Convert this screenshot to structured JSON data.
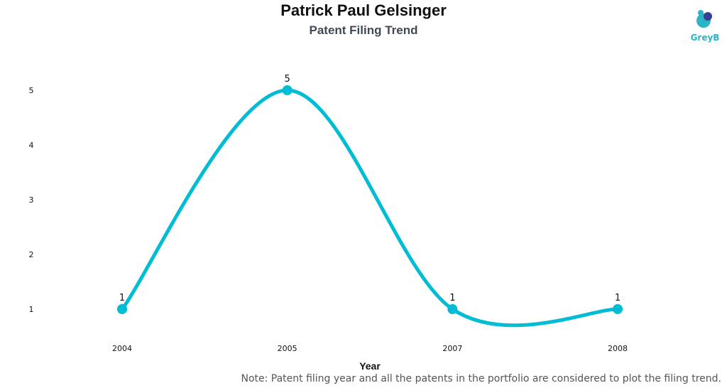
{
  "header": {
    "title": "Patrick Paul Gelsinger",
    "subtitle": "Patent Filing Trend"
  },
  "logo": {
    "text": "GreyB",
    "icon": "greyb-logo-icon",
    "color": "#2bb3c6"
  },
  "footer": {
    "note": "Note: Patent filing year and all the patents in the portfolio are considered to plot the filing trend."
  },
  "chart_data": {
    "type": "line",
    "title": "Patrick Paul Gelsinger",
    "subtitle": "Patent Filing Trend",
    "xlabel": "Year",
    "ylabel": "",
    "categories": [
      "2004",
      "2005",
      "2007",
      "2008"
    ],
    "series": [
      {
        "values": [
          1,
          5,
          1,
          1
        ],
        "color": "#00bcd4"
      }
    ],
    "yticks": [
      1,
      2,
      3,
      4,
      5
    ],
    "ylim": [
      1,
      5
    ],
    "grid": false,
    "legend": "none",
    "smooth": true,
    "data_labels": true
  }
}
